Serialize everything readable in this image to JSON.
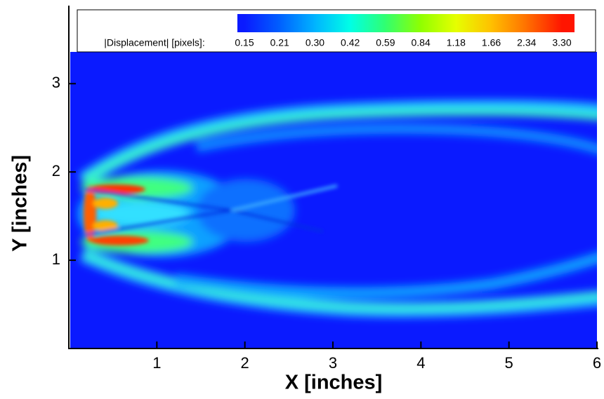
{
  "chart_data": {
    "type": "contour",
    "xlabel": "X [inches]",
    "ylabel": "Y [inches]",
    "xlim": [
      0,
      6
    ],
    "xticks": [
      1,
      2,
      3,
      4,
      5,
      6
    ],
    "ylim": [
      0,
      3.9
    ],
    "yticks": [
      1,
      2,
      3
    ],
    "colorbar_label": "|Displacement| [pixels]:",
    "levels": [
      0.15,
      0.21,
      0.3,
      0.42,
      0.59,
      0.84,
      1.18,
      1.66,
      2.34,
      3.3
    ],
    "level_labels": [
      "0.15",
      "0.21",
      "0.30",
      "0.42",
      "0.59",
      "0.84",
      "1.18",
      "1.66",
      "2.34",
      "3.30"
    ],
    "level_colors": [
      "#0a1aff",
      "#0060ff",
      "#00b4ff",
      "#00ffe6",
      "#30ff70",
      "#90ff00",
      "#e6ff00",
      "#ffc000",
      "#ff7000",
      "#ff1500"
    ]
  }
}
